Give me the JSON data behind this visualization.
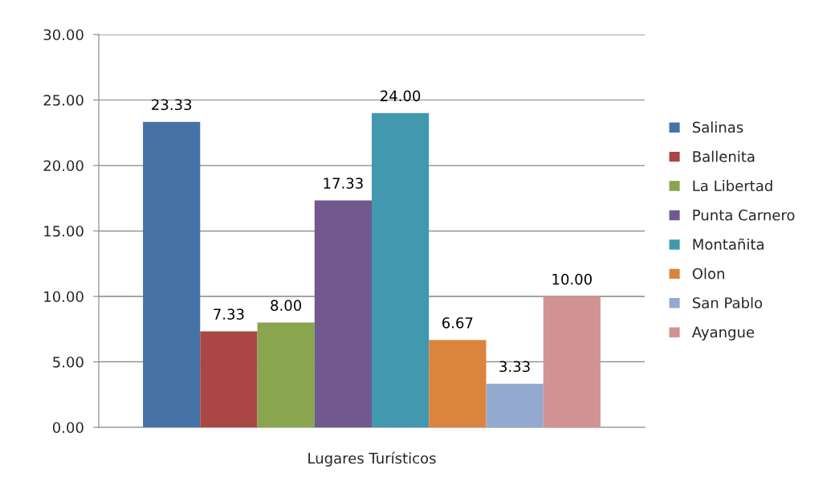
{
  "chart_data": {
    "type": "bar",
    "categories": [
      "Lugares Turísticos"
    ],
    "series": [
      {
        "name": "Salinas",
        "color": "#4572a7",
        "values": [
          23.33
        ],
        "value_labels": [
          "23.33"
        ]
      },
      {
        "name": "Ballenita",
        "color": "#aa4643",
        "values": [
          7.33
        ],
        "value_labels": [
          "7.33"
        ]
      },
      {
        "name": "La Libertad",
        "color": "#89a54e",
        "values": [
          8.0
        ],
        "value_labels": [
          "8.00"
        ]
      },
      {
        "name": "Punta Carnero",
        "color": "#71588f",
        "values": [
          17.33
        ],
        "value_labels": [
          "17.33"
        ]
      },
      {
        "name": "Montañita",
        "color": "#4198af",
        "values": [
          24.0
        ],
        "value_labels": [
          "24.00"
        ]
      },
      {
        "name": "Olon",
        "color": "#db843d",
        "values": [
          6.67
        ],
        "value_labels": [
          "6.67"
        ]
      },
      {
        "name": "San Pablo",
        "color": "#93a9cf",
        "values": [
          3.33
        ],
        "value_labels": [
          "3.33"
        ]
      },
      {
        "name": "Ayangue",
        "color": "#d19392",
        "values": [
          10.0
        ],
        "value_labels": [
          "10.00"
        ]
      }
    ],
    "ylim": [
      0,
      30
    ],
    "yticks": [
      {
        "value": 0,
        "label": "0.00"
      },
      {
        "value": 5,
        "label": "5.00"
      },
      {
        "value": 10,
        "label": "10.00"
      },
      {
        "value": 15,
        "label": "15.00"
      },
      {
        "value": 20,
        "label": "20.00"
      },
      {
        "value": 25,
        "label": "25.00"
      },
      {
        "value": 30,
        "label": "30.00"
      }
    ],
    "grid": "y",
    "legend": "right"
  }
}
